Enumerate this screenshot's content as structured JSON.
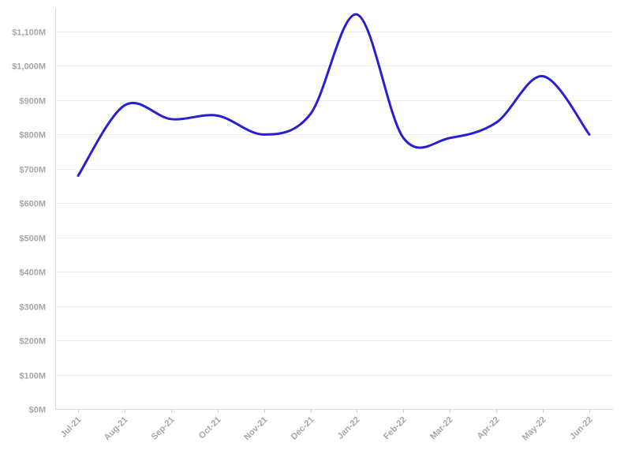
{
  "chart_data": {
    "type": "line",
    "title": "",
    "xlabel": "",
    "ylabel": "",
    "categories": [
      "Jul-21",
      "Aug-21",
      "Sep-21",
      "Oct-21",
      "Nov-21",
      "Dec-21",
      "Jan-22",
      "Feb-22",
      "Mar-22",
      "Apr-22",
      "May-22",
      "Jun-22"
    ],
    "y_ticks": [
      "$0M",
      "$100M",
      "$200M",
      "$300M",
      "$400M",
      "$500M",
      "$600M",
      "$700M",
      "$800M",
      "$900M",
      "$1,000M",
      "$1,100M"
    ],
    "ylim": [
      0,
      1150
    ],
    "grid": true,
    "series": [
      {
        "values": [
          680,
          885,
          845,
          855,
          800,
          860,
          1150,
          790,
          790,
          835,
          970,
          800
        ],
        "color": "#2a1fd0"
      }
    ]
  }
}
